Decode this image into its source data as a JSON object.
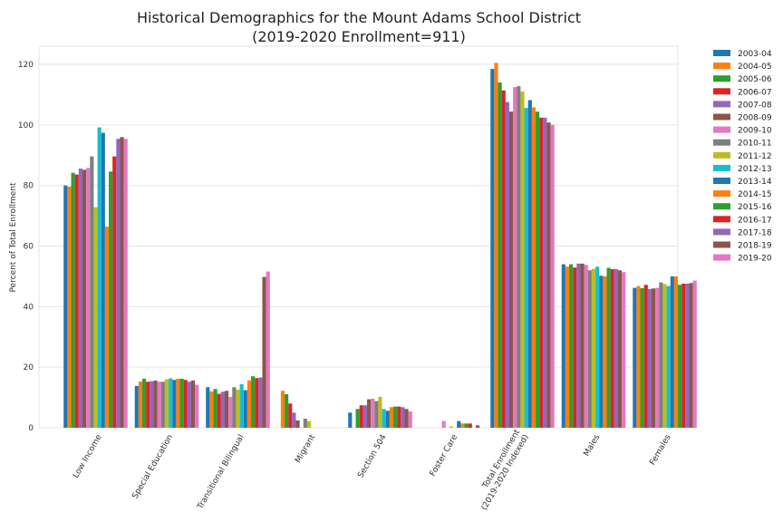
{
  "chart_data": {
    "type": "bar",
    "title_line1": "Historical Demographics for the Mount Adams School District",
    "title_line2": "(2019-2020 Enrollment=911)",
    "ylabel": "Percent of Total Enrollment",
    "xlabel": "",
    "ylim": [
      0,
      126
    ],
    "yticks": [
      0,
      20,
      40,
      60,
      80,
      100,
      120
    ],
    "grid": true,
    "legend_position": "outside-right",
    "categories": [
      [
        "Low Income"
      ],
      [
        "Special Education"
      ],
      [
        "Transitional Bilingual"
      ],
      [
        "Migrant"
      ],
      [
        "Section 504"
      ],
      [
        "Foster Care"
      ],
      [
        "Total Enrollment",
        "(2019-2020 Indexed)"
      ],
      [
        "Males"
      ],
      [
        "Females"
      ]
    ],
    "series": [
      {
        "name": "2003-04",
        "color": "#1f77b4",
        "values": [
          80,
          13.8,
          13.4,
          0,
          5,
          0,
          118.5,
          54,
          46.2
        ]
      },
      {
        "name": "2004-05",
        "color": "#ff7f0e",
        "values": [
          79.6,
          15.3,
          12,
          12.2,
          0,
          0,
          120.5,
          53.2,
          46.8
        ]
      },
      {
        "name": "2005-06",
        "color": "#2ca02c",
        "values": [
          84.2,
          16.2,
          12.8,
          11.1,
          6.2,
          0,
          114,
          54,
          46.1
        ]
      },
      {
        "name": "2006-07",
        "color": "#d62728",
        "values": [
          83.6,
          15.2,
          11.2,
          8,
          7.4,
          0,
          111.4,
          52.9,
          47.2
        ]
      },
      {
        "name": "2007-08",
        "color": "#9467bd",
        "values": [
          85.6,
          15.4,
          11.9,
          5,
          7.4,
          0,
          107.6,
          54.2,
          45.8
        ]
      },
      {
        "name": "2008-09",
        "color": "#8c564b",
        "values": [
          85.2,
          15.6,
          12.2,
          2.4,
          9.4,
          0,
          104.4,
          54.2,
          46
        ]
      },
      {
        "name": "2009-10",
        "color": "#e377c2",
        "values": [
          85.8,
          15.2,
          10.2,
          0,
          9.6,
          2.2,
          112.5,
          53.8,
          46.2
        ]
      },
      {
        "name": "2010-11",
        "color": "#7f7f7f",
        "values": [
          89.6,
          15.2,
          13.4,
          3,
          8.8,
          0,
          112.8,
          52,
          48
        ]
      },
      {
        "name": "2011-12",
        "color": "#bcbd22",
        "values": [
          72.8,
          16,
          12.6,
          2.2,
          10.2,
          0.4,
          111,
          52.5,
          47.5
        ]
      },
      {
        "name": "2012-13",
        "color": "#17becf",
        "values": [
          99.2,
          16.3,
          14.4,
          0,
          6.2,
          0,
          105.6,
          53.2,
          46.8
        ]
      },
      {
        "name": "2013-14",
        "color": "#1f77b4",
        "values": [
          97.4,
          15.8,
          12.4,
          0,
          5.6,
          2.2,
          108.2,
          50.2,
          50
        ]
      },
      {
        "name": "2014-15",
        "color": "#ff7f0e",
        "values": [
          66.4,
          16.2,
          15.6,
          0,
          6.8,
          1.4,
          105.8,
          50,
          50
        ]
      },
      {
        "name": "2015-16",
        "color": "#2ca02c",
        "values": [
          84.6,
          16.2,
          17,
          0,
          7,
          1.4,
          104.4,
          52.8,
          47.2
        ]
      },
      {
        "name": "2016-17",
        "color": "#d62728",
        "values": [
          89.6,
          15.8,
          16.4,
          0,
          7,
          1.4,
          102.4,
          52.4,
          47.6
        ]
      },
      {
        "name": "2017-18",
        "color": "#9467bd",
        "values": [
          95.4,
          15.2,
          16.6,
          0,
          6.8,
          0,
          102.4,
          52.4,
          47.6
        ]
      },
      {
        "name": "2018-19",
        "color": "#8c564b",
        "values": [
          96,
          15.6,
          49.8,
          0,
          6.2,
          0.8,
          100.8,
          52,
          47.8
        ]
      },
      {
        "name": "2019-20",
        "color": "#e377c2",
        "values": [
          95.4,
          14.2,
          51.6,
          0,
          5.4,
          0,
          100,
          51.4,
          48.6
        ]
      }
    ]
  }
}
